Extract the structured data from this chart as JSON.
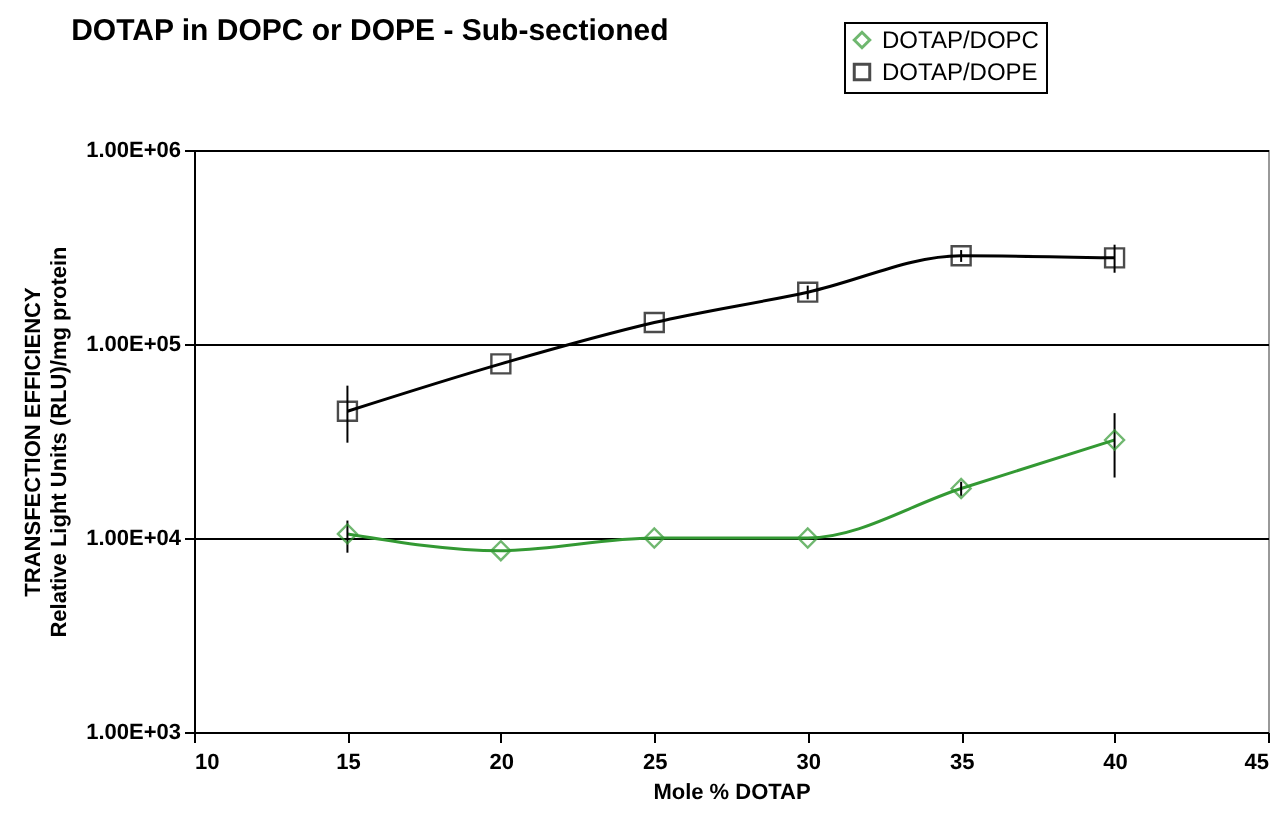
{
  "chart_data": {
    "type": "line",
    "title": "DOTAP in DOPC or DOPE - Sub-sectioned",
    "xlabel": "Mole % DOTAP",
    "ylabel": "TRANSFECTION EFFICIENCY\nRelative Light Units (RLU)/mg protein",
    "x": [
      15,
      20,
      25,
      30,
      35,
      40
    ],
    "series": [
      {
        "name": "DOTAP/DOPC",
        "color": "#339933",
        "marker": "diamond",
        "values": [
          10500,
          8600,
          10000,
          10000,
          18000,
          32000
        ],
        "errors": [
          [
            8400,
            12300
          ],
          null,
          null,
          null,
          [
            16500,
            19500
          ],
          [
            20500,
            44000
          ]
        ]
      },
      {
        "name": "DOTAP/DOPE",
        "color": "#000000",
        "marker": "square",
        "values": [
          45000,
          79000,
          129000,
          185000,
          285000,
          278000
        ],
        "errors": [
          [
            31000,
            61000
          ],
          null,
          null,
          [
            170000,
            200000
          ],
          [
            265000,
            305000
          ],
          [
            233000,
            325000
          ]
        ]
      }
    ],
    "log": "y",
    "xlim": [
      10,
      45
    ],
    "xticks": [
      10,
      15,
      20,
      25,
      30,
      35,
      40,
      45
    ],
    "ylim": [
      1000,
      1000000
    ],
    "yticks": [
      {
        "value": 1000,
        "label": "1.00E+03"
      },
      {
        "value": 10000,
        "label": "1.00E+04"
      },
      {
        "value": 100000,
        "label": "1.00E+05"
      },
      {
        "value": 1000000,
        "label": "1.00E+06"
      }
    ],
    "grid": "y",
    "legend": "top right",
    "line_style": "solid"
  }
}
